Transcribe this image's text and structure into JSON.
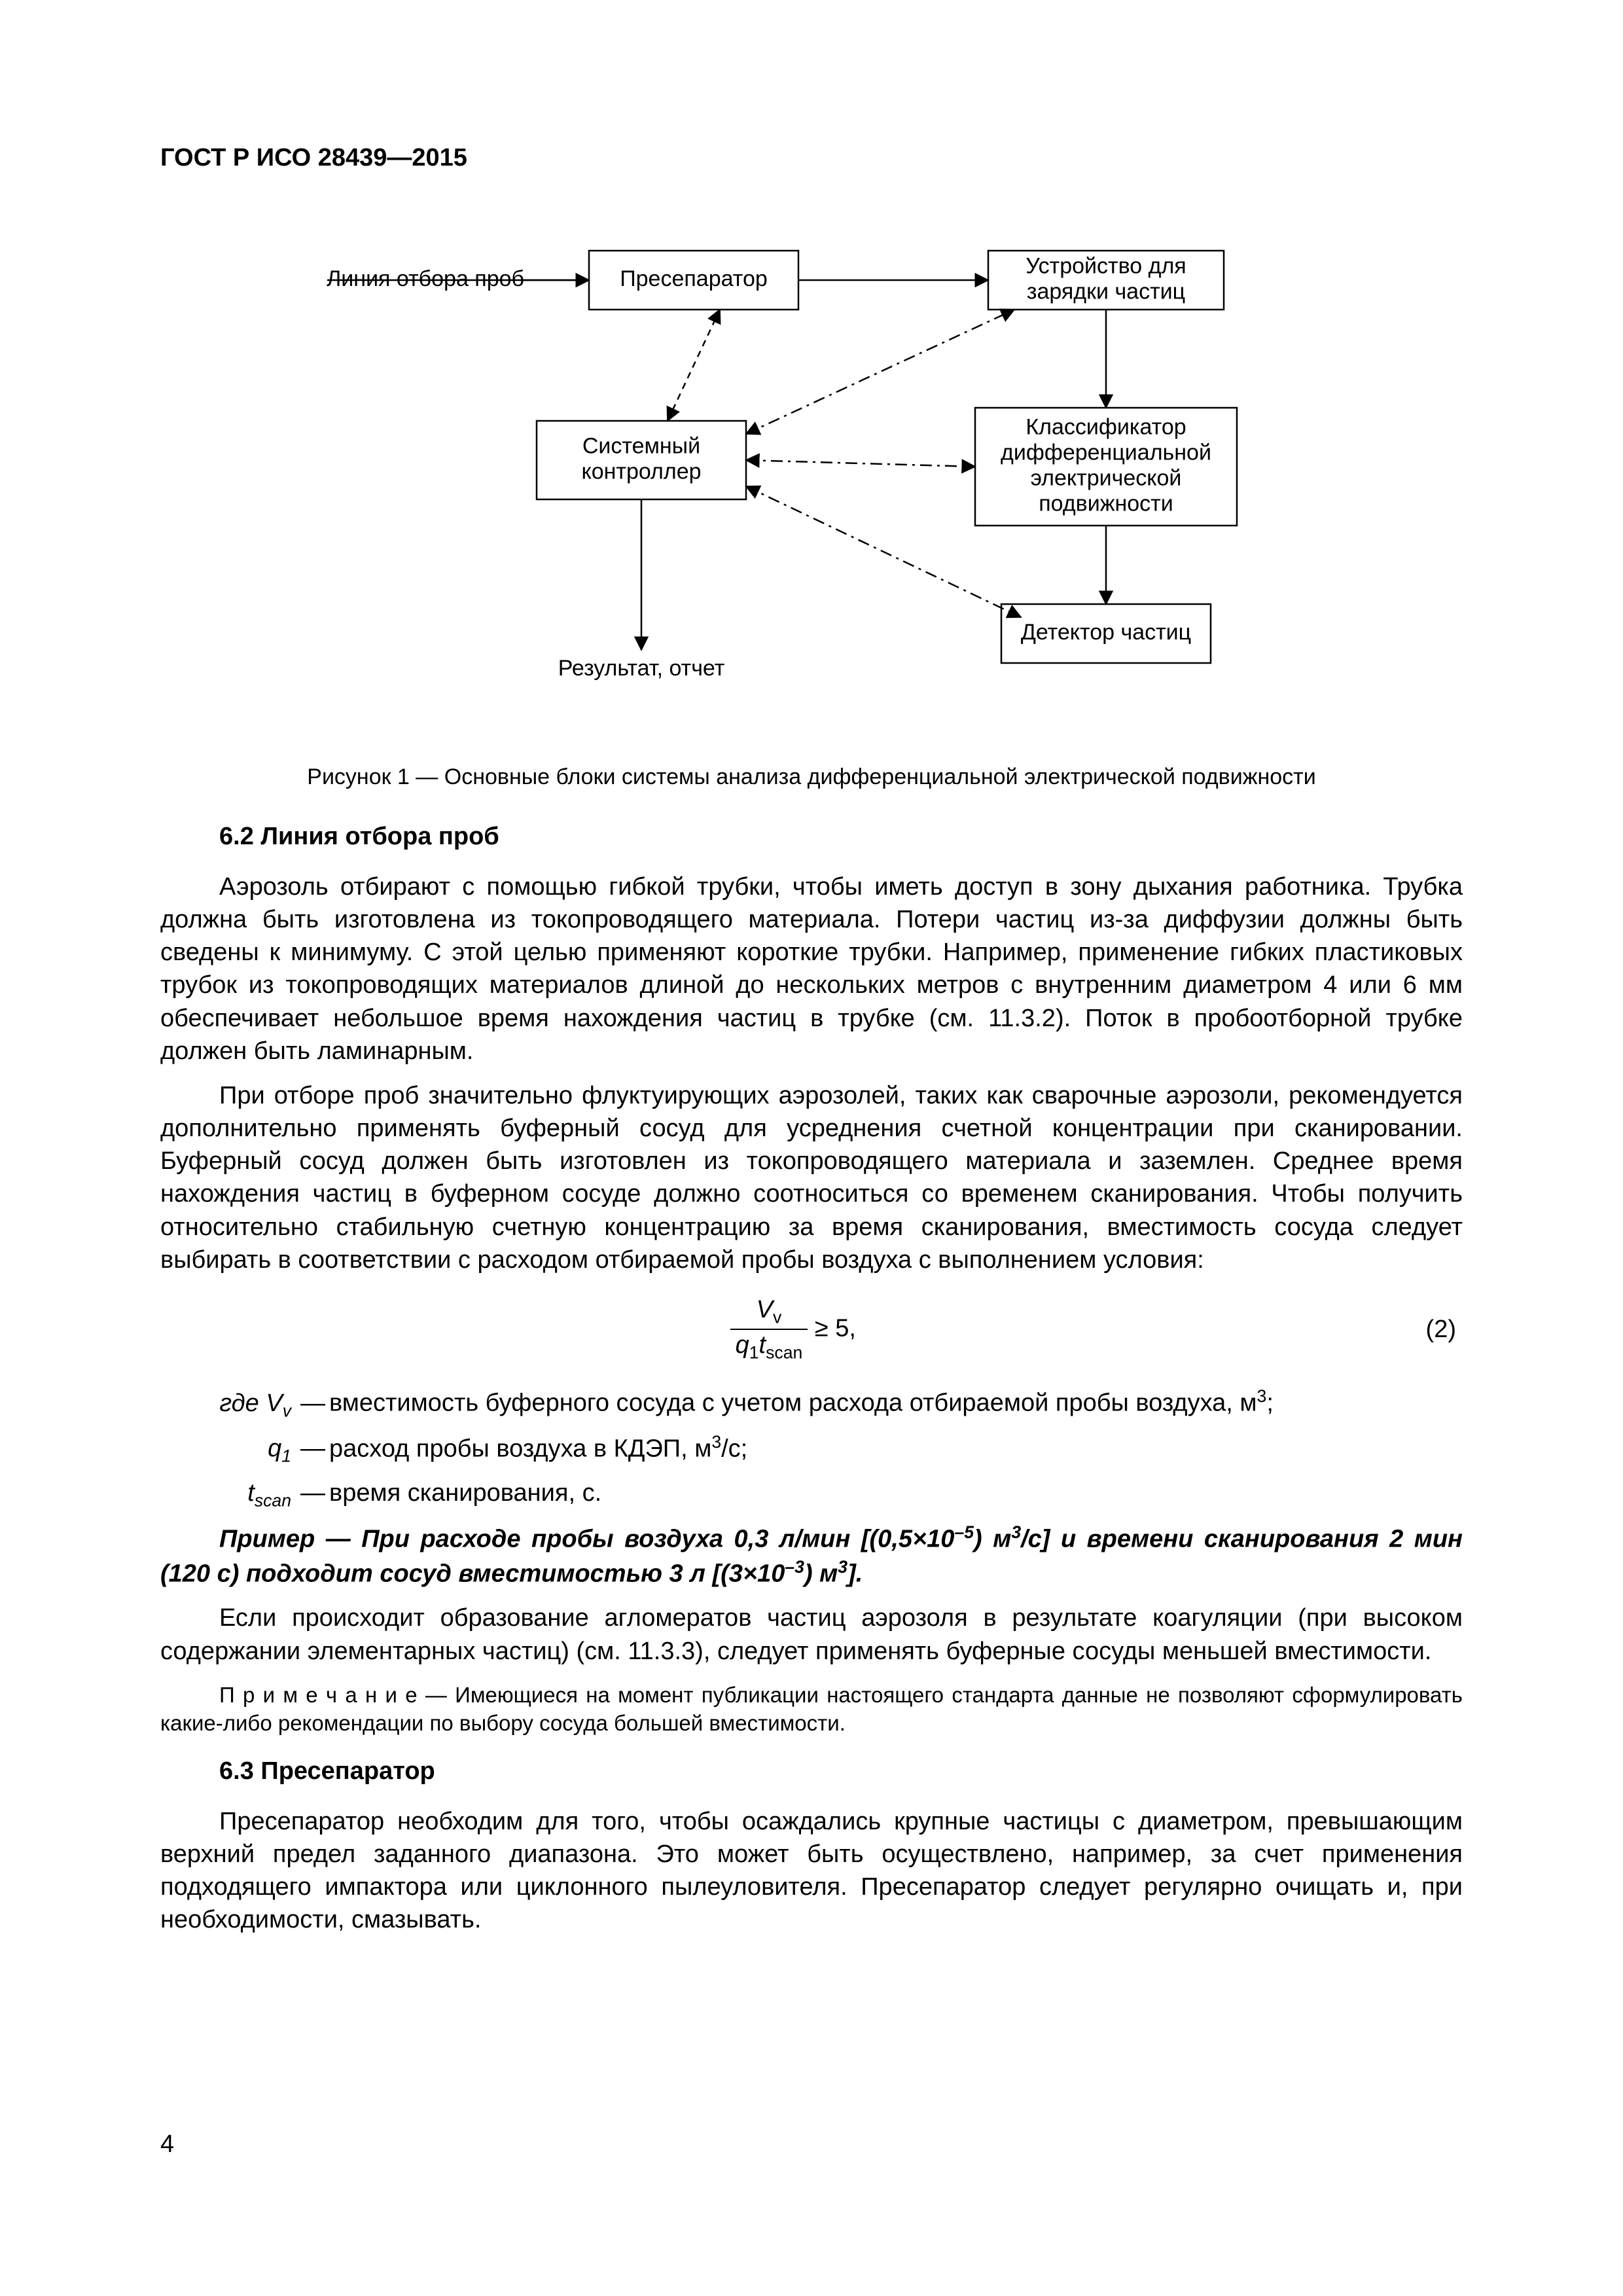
{
  "standard_header": "ГОСТ Р ИСО 28439—2015",
  "page_number": "4",
  "diagram": {
    "type": "flowchart",
    "caption": "Рисунок 1 — Основные блоки системы анализа дифференциальной электрической подвижности",
    "stroke_color": "#000000",
    "background_color": "#ffffff",
    "box_fill": "#ffffff",
    "font_size": 34,
    "nodes": {
      "inlet_label": "Линия отбора проб",
      "preseparator": "Пресепаратор",
      "charger": "Устройство для\nзарядки частиц",
      "controller": "Системный\nконтроллер",
      "classifier": "Классификатор\nдифференциальной\nэлектрической\nподвижности",
      "result": "Результат, отчет",
      "detector": "Детектор частиц"
    }
  },
  "section_6_2": {
    "title": "6.2  Линия отбора проб",
    "para1": "Аэрозоль отбирают с помощью гибкой трубки, чтобы иметь доступ в зону дыхания работника. Трубка должна быть изготовлена из токопроводящего материала. Потери частиц из-за диффузии должны быть сведены к минимуму. С этой целью применяют короткие трубки. Например, применение гибких пластиковых трубок из токопроводящих материалов длиной до нескольких метров с внутренним диаметром 4 или 6 мм обеспечивает небольшое время нахождения частиц в трубке (см. 11.3.2). Поток в пробоотборной трубке должен быть ламинарным.",
    "para2": "При отборе проб значительно флуктуирующих аэрозолей, таких как сварочные аэрозоли, рекомендуется дополнительно применять буферный сосуд для усреднения счетной концентрации при сканировании. Буферный сосуд должен быть изготовлен из токопроводящего материала и заземлен. Среднее время нахождения частиц в буферном сосуде должно соотноситься со временем сканирования. Чтобы получить относительно стабильную счетную концентрацию за время сканирования, вместимость сосуда следует выбирать в соответствии с расходом отбираемой пробы воздуха с выполнением условия:",
    "equation": {
      "numerator_html": "<i>V</i><sub>v</sub>",
      "denominator_html": "<i>q</i><sub>1</sub><i>t</i><sub>scan</sub>",
      "relation": " ≥ 5,",
      "number": "(2)"
    },
    "where_intro": "где ",
    "where": [
      {
        "sym_html": "<i>V</i><sub>v</sub>",
        "text_html": "вместимость буферного сосуда с учетом расхода отбираемой пробы воздуха, м<sup>3</sup>;"
      },
      {
        "sym_html": "<i>q</i><sub>1</sub>",
        "text_html": "расход пробы воздуха в КДЭП, м<sup>3</sup>/с;"
      },
      {
        "sym_html": "<i>t</i><sub>scan</sub>",
        "text_html": "время сканирования, с."
      }
    ],
    "example_html": "Пример — При расходе пробы воздуха 0,3 л/мин [(0,5×10<sup>–5</sup>) м<sup>3</sup>/с] и времени сканирования 2 мин (120 с) подходит сосуд вместимостью 3 л [(3×10<sup>–3</sup>) м<sup>3</sup>].",
    "para3": "Если происходит образование агломератов частиц аэрозоля в результате коагуляции (при высоком содержании элементарных частиц) (см. 11.3.3), следует применять буферные сосуды меньшей вместимости.",
    "note_label": "П р и м е ч а н и е",
    "note_text": " — Имеющиеся на момент публикации настоящего стандарта данные не позволяют сформулировать какие-либо рекомендации по выбору сосуда большей вместимости."
  },
  "section_6_3": {
    "title": "6.3  Пресепаратор",
    "para1": "Пресепаратор необходим для того, чтобы осаждались крупные частицы с диаметром, превышающим верхний предел заданного диапазона. Это может быть осуществлено, например, за счет применения подходящего импактора или циклонного пылеуловителя. Пресепаратор следует регулярно очищать и, при необходимости, смазывать."
  }
}
